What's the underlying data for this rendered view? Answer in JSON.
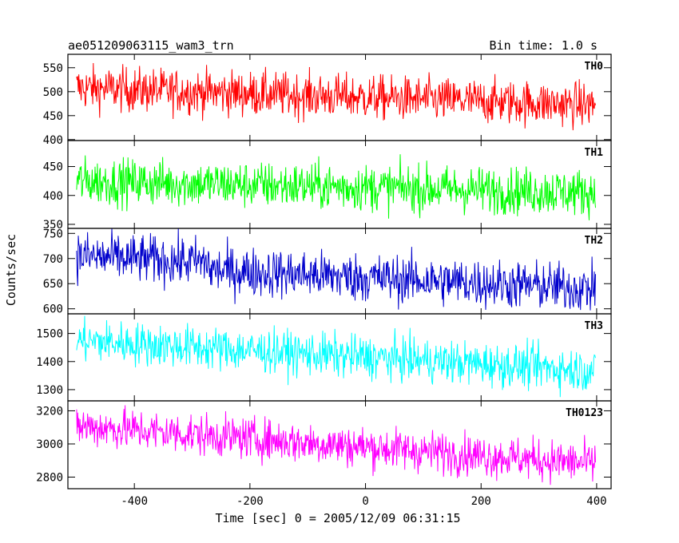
{
  "chart_data": {
    "type": "line",
    "title": "ae051209063115_wam3_trn",
    "subtitle": "Bin time: 1.0 s",
    "xlabel": "Time [sec] 0 = 2005/12/09 06:31:15",
    "ylabel": "Counts/sec",
    "xlim": [
      -515,
      425
    ],
    "x_ticks": [
      -400,
      -200,
      0,
      200,
      400
    ],
    "x_range": [
      -500,
      398
    ],
    "grid": false,
    "panels": [
      {
        "name": "TH0",
        "color": "#ff0000",
        "ylim": [
          398,
          578
        ],
        "y_ticks": [
          400,
          450,
          500,
          550
        ],
        "start_mean": 508,
        "end_mean": 472,
        "noise": 23,
        "min": 400,
        "max": 576,
        "steps": []
      },
      {
        "name": "TH1",
        "color": "#00ff00",
        "ylim": [
          343,
          495
        ],
        "y_ticks": [
          350,
          400,
          450
        ],
        "start_mean": 425,
        "end_mean": 405,
        "noise": 20,
        "min": 355,
        "max": 495,
        "steps": []
      },
      {
        "name": "TH2",
        "color": "#0000cc",
        "ylim": [
          590,
          760
        ],
        "y_ticks": [
          600,
          650,
          700,
          750
        ],
        "start_mean": 705,
        "end_mean": 655,
        "noise": 24,
        "min": 590,
        "max": 760,
        "steps": [
          {
            "x": -270,
            "delta": -15
          }
        ]
      },
      {
        "name": "TH3",
        "color": "#00ffff",
        "ylim": [
          1260,
          1570
        ],
        "y_ticks": [
          1300,
          1400,
          1500
        ],
        "start_mean": 1475,
        "end_mean": 1368,
        "noise": 38,
        "min": 1265,
        "max": 1570,
        "steps": []
      },
      {
        "name": "TH0123",
        "color": "#ff00ff",
        "ylim": [
          2730,
          3260
        ],
        "y_ticks": [
          2800,
          3000,
          3200
        ],
        "start_mean": 3110,
        "end_mean": 2880,
        "noise": 62,
        "min": 2735,
        "max": 3255,
        "steps": []
      }
    ]
  }
}
